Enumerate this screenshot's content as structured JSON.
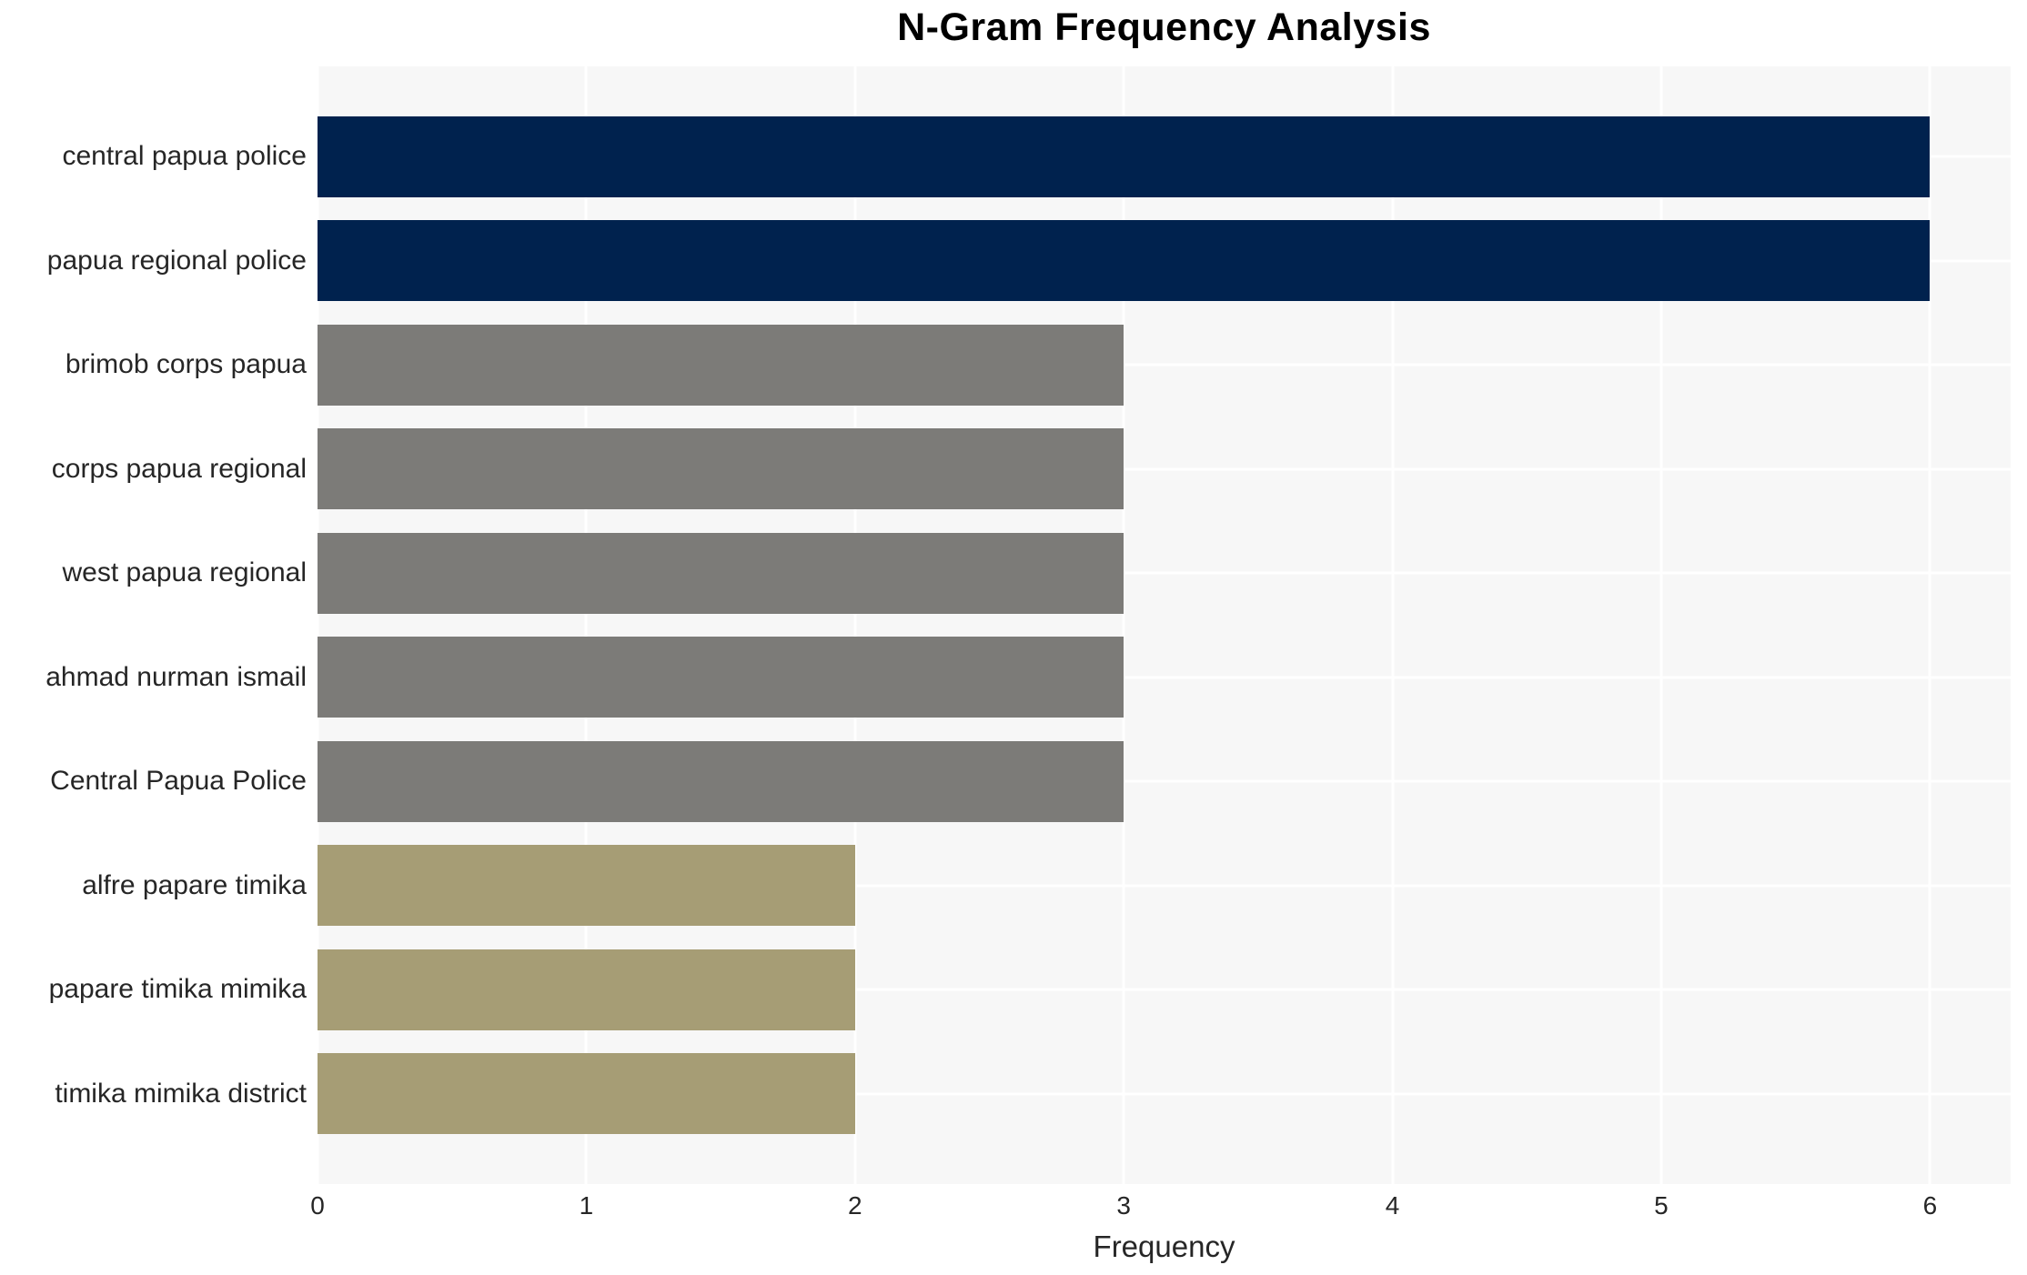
{
  "title": "N-Gram Frequency Analysis",
  "colors": {
    "high_bar": "#00224E",
    "mid_bar": "#7C7B78",
    "low_bar": "#A69D75",
    "plot_background": "#F7F7F7",
    "gridline": "#FFFFFF",
    "text": "#262626",
    "title_text": "#000000",
    "figure_background": "#FFFFFF"
  },
  "chart_data": {
    "type": "bar",
    "orientation": "horizontal",
    "title": "N-Gram Frequency Analysis",
    "xlabel": "Frequency",
    "ylabel": "",
    "categories": [
      "central papua police",
      "papua regional police",
      "brimob corps papua",
      "corps papua regional",
      "west papua regional",
      "ahmad nurman ismail",
      "Central Papua Police",
      "alfre papare timika",
      "papare timika mimika",
      "timika mimika district"
    ],
    "values": [
      6,
      6,
      3,
      3,
      3,
      3,
      3,
      2,
      2,
      2
    ],
    "bar_colors": [
      "#00224E",
      "#00224E",
      "#7C7B78",
      "#7C7B78",
      "#7C7B78",
      "#7C7B78",
      "#7C7B78",
      "#A69D75",
      "#A69D75",
      "#A69D75"
    ],
    "x_ticks": [
      0,
      1,
      2,
      3,
      4,
      5,
      6
    ],
    "xlim": [
      0,
      6.3
    ],
    "grid": true,
    "legend": false
  },
  "layout": {
    "top_margin_pct": 4.47,
    "row_pitch_pct": 9.317,
    "bar_height_pct": 7.24
  }
}
